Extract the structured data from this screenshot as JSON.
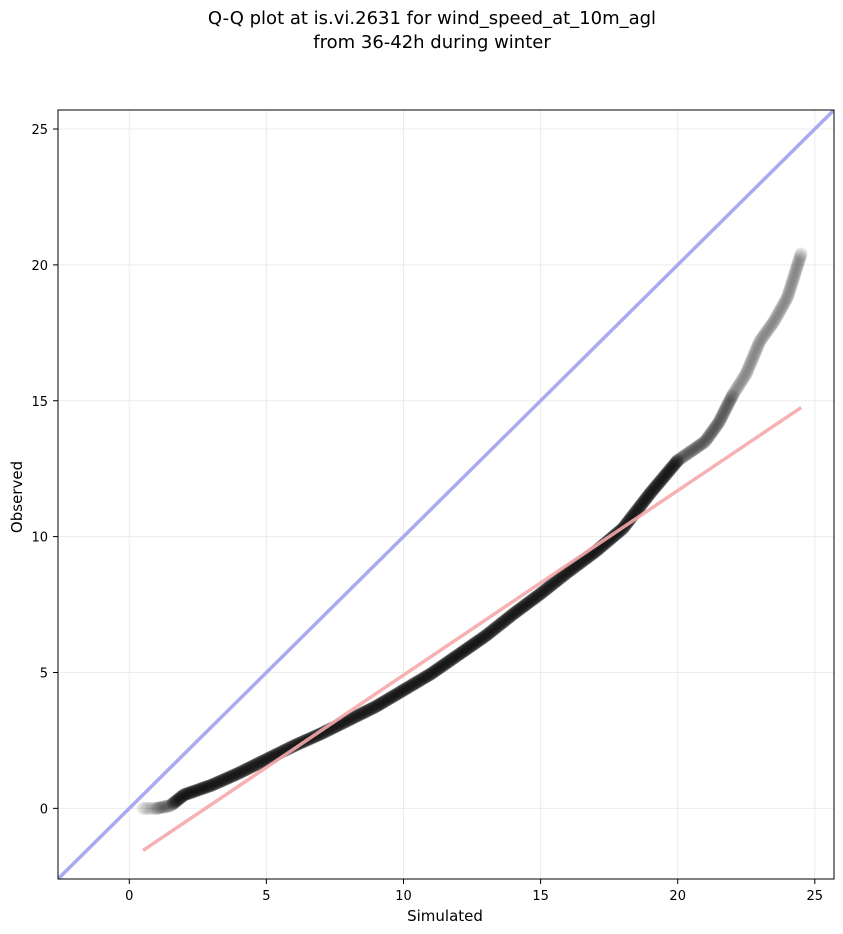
{
  "chart_data": {
    "type": "scatter",
    "title_line1": "Q-Q plot at is.vi.2631 for wind_speed_at_10m_agl",
    "title_line2": "from 36-42h during winter",
    "xlabel": "Simulated",
    "ylabel": "Observed",
    "xlim": [
      -2.6,
      25.7
    ],
    "ylim": [
      -2.6,
      25.7
    ],
    "xticks": [
      0,
      5,
      10,
      15,
      20,
      25
    ],
    "yticks": [
      0,
      5,
      10,
      15,
      20,
      25
    ],
    "grid": true,
    "reference_line": {
      "color": "#aaaaf0",
      "x": [
        -2.6,
        25.7
      ],
      "y": [
        -2.6,
        25.7
      ]
    },
    "fit_line": {
      "color": "#f5aaaa",
      "x": [
        0.5,
        24.5
      ],
      "y": [
        -1.55,
        14.75
      ]
    },
    "point_color": "#000000",
    "quantile_curve": [
      [
        0.5,
        0.0
      ],
      [
        1.0,
        0.0
      ],
      [
        1.5,
        0.1
      ],
      [
        2.0,
        0.5
      ],
      [
        3.0,
        0.85
      ],
      [
        4.0,
        1.3
      ],
      [
        5.0,
        1.8
      ],
      [
        6.0,
        2.3
      ],
      [
        7.0,
        2.75
      ],
      [
        8.0,
        3.25
      ],
      [
        9.0,
        3.75
      ],
      [
        10.0,
        4.35
      ],
      [
        11.0,
        4.95
      ],
      [
        12.0,
        5.65
      ],
      [
        13.0,
        6.35
      ],
      [
        14.0,
        7.15
      ],
      [
        15.0,
        7.9
      ],
      [
        16.0,
        8.7
      ],
      [
        17.0,
        9.45
      ],
      [
        18.0,
        10.3
      ],
      [
        19.0,
        11.6
      ],
      [
        20.0,
        12.8
      ],
      [
        21.0,
        13.5
      ],
      [
        21.5,
        14.2
      ],
      [
        22.0,
        15.2
      ],
      [
        22.5,
        16.0
      ],
      [
        23.0,
        17.2
      ],
      [
        23.5,
        17.9
      ],
      [
        24.0,
        18.8
      ],
      [
        24.5,
        20.4
      ]
    ]
  }
}
